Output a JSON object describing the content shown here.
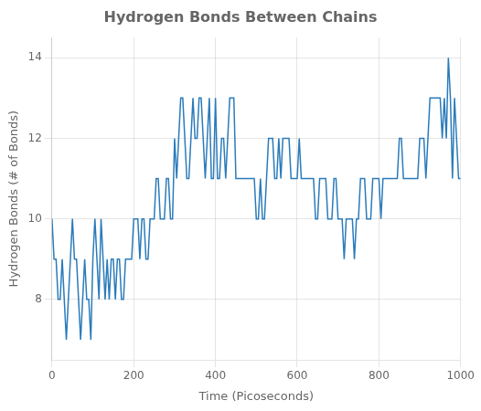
{
  "chart_data": {
    "type": "line",
    "title": "Hydrogen Bonds Between Chains",
    "xlabel": "Time (Picoseconds)",
    "ylabel": "Hydrogen Bonds (# of Bonds)",
    "color": "#2b7bba",
    "xlim": [
      0,
      1000
    ],
    "ylim": [
      6.5,
      14.5
    ],
    "xticks": [
      0,
      200,
      400,
      600,
      800,
      1000
    ],
    "yticks": [
      8,
      10,
      12,
      14
    ],
    "grid": true,
    "x": [
      0,
      5,
      10,
      15,
      20,
      25,
      30,
      35,
      40,
      45,
      50,
      55,
      60,
      65,
      70,
      75,
      80,
      85,
      90,
      95,
      100,
      105,
      110,
      115,
      120,
      125,
      130,
      135,
      140,
      145,
      150,
      155,
      160,
      165,
      170,
      175,
      180,
      185,
      190,
      195,
      200,
      205,
      210,
      215,
      220,
      225,
      230,
      235,
      240,
      245,
      250,
      255,
      260,
      265,
      270,
      275,
      280,
      285,
      290,
      295,
      300,
      305,
      310,
      315,
      320,
      325,
      330,
      335,
      340,
      345,
      350,
      355,
      360,
      365,
      370,
      375,
      380,
      385,
      390,
      395,
      400,
      405,
      410,
      415,
      420,
      425,
      430,
      435,
      440,
      445,
      450,
      455,
      460,
      465,
      470,
      475,
      480,
      485,
      490,
      495,
      500,
      505,
      510,
      515,
      520,
      525,
      530,
      535,
      540,
      545,
      550,
      555,
      560,
      565,
      570,
      575,
      580,
      585,
      590,
      595,
      600,
      605,
      610,
      615,
      620,
      625,
      630,
      635,
      640,
      645,
      650,
      655,
      660,
      665,
      670,
      675,
      680,
      685,
      690,
      695,
      700,
      705,
      710,
      715,
      720,
      725,
      730,
      735,
      740,
      745,
      750,
      755,
      760,
      765,
      770,
      775,
      780,
      785,
      790,
      795,
      800,
      805,
      810,
      815,
      820,
      825,
      830,
      835,
      840,
      845,
      850,
      855,
      860,
      865,
      870,
      875,
      880,
      885,
      890,
      895,
      900,
      905,
      910,
      915,
      920,
      925,
      930,
      935,
      940,
      945,
      950,
      955,
      960,
      965,
      970,
      975,
      980,
      985,
      990,
      995,
      1000
    ],
    "values": [
      10,
      9,
      9,
      8,
      8,
      9,
      8,
      7,
      8,
      9,
      10,
      9,
      9,
      8,
      7,
      8,
      9,
      8,
      8,
      7,
      9,
      10,
      9,
      8,
      10,
      9,
      8,
      9,
      8,
      9,
      9,
      8,
      9,
      9,
      8,
      8,
      9,
      9,
      9,
      9,
      10,
      10,
      10,
      9,
      10,
      10,
      9,
      9,
      10,
      10,
      10,
      11,
      11,
      10,
      10,
      10,
      11,
      11,
      10,
      10,
      12,
      11,
      12,
      13,
      13,
      12,
      11,
      11,
      12,
      13,
      12,
      12,
      13,
      13,
      12,
      11,
      12,
      13,
      11,
      11,
      13,
      11,
      11,
      12,
      12,
      11,
      12,
      13,
      13,
      13,
      11,
      11,
      11,
      11,
      11,
      11,
      11,
      11,
      11,
      11,
      10,
      10,
      11,
      10,
      10,
      11,
      12,
      12,
      12,
      11,
      11,
      12,
      11,
      12,
      12,
      12,
      12,
      11,
      11,
      11,
      11,
      12,
      11,
      11,
      11,
      11,
      11,
      11,
      11,
      10,
      10,
      11,
      11,
      11,
      11,
      10,
      10,
      10,
      11,
      11,
      10,
      10,
      10,
      9,
      10,
      10,
      10,
      10,
      9,
      10,
      10,
      11,
      11,
      11,
      10,
      10,
      10,
      11,
      11,
      11,
      11,
      10,
      11,
      11,
      11,
      11,
      11,
      11,
      11,
      11,
      12,
      12,
      11,
      11,
      11,
      11,
      11,
      11,
      11,
      11,
      12,
      12,
      12,
      11,
      12,
      13,
      13,
      13,
      13,
      13,
      13,
      12,
      13,
      12,
      14,
      13,
      11,
      13,
      12,
      11,
      11
    ]
  }
}
